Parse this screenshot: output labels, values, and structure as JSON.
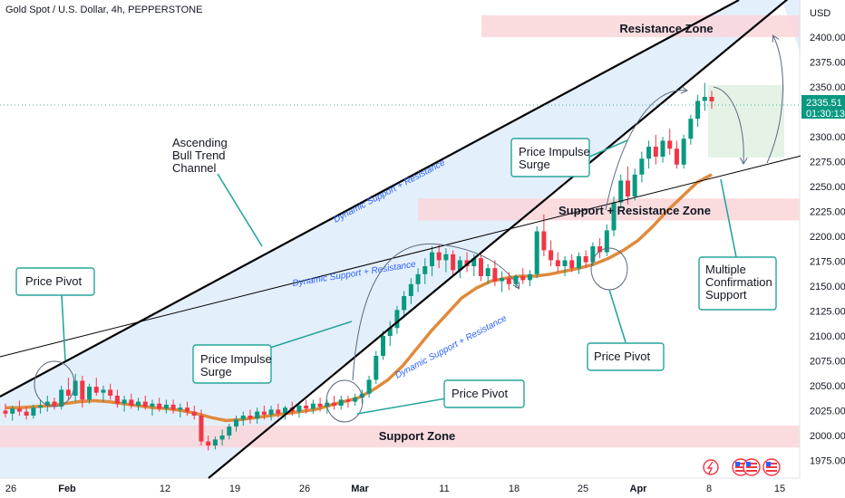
{
  "chart_data": {
    "type": "candlestick",
    "title": "Gold Spot / U.S. Dollar, 4h, PEPPERSTONE",
    "currency": "USD",
    "ylim": [
      1956,
      2447
    ],
    "y_ticks": [
      1975,
      2000,
      2025,
      2050,
      2075,
      2100,
      2125,
      2150,
      2175,
      2200,
      2225,
      2250,
      2275,
      2300,
      2325,
      2350,
      2375,
      2400
    ],
    "x_ticks": [
      "26",
      "Feb",
      "12",
      "19",
      "26",
      "Mar",
      "11",
      "18",
      "25",
      "Apr",
      "8",
      "15"
    ],
    "last_price": "2335.51",
    "countdown": "01:30:13",
    "colors": {
      "up": "#089981",
      "down": "#f23645",
      "ma": "#e08a3c",
      "channel_fill": "#dbe9fb",
      "zone_fill": "#f9d6d9",
      "accent": "#2962ff",
      "box_border": "#26a69a"
    },
    "zones": [
      {
        "name": "Resistance Zone",
        "from": 2400,
        "to": 2422
      },
      {
        "name": "Support + Resistance Zone",
        "from": 2216,
        "to": 2238
      },
      {
        "name": "Support Zone",
        "from": 1988,
        "to": 2010
      }
    ],
    "channel_labels": [
      "Dynamic Support + Resistance",
      "Dynamic Support + Resistance",
      "Dynamic Support + Resistance"
    ],
    "annotations": [
      "Price Pivot",
      "Ascending Bull Trend Channel",
      "Price Impulse Surge",
      "Price Pivot",
      "Price Impulse Surge",
      "Price Pivot",
      "Multiple Confirmation Support"
    ],
    "ohlc": [
      [
        2025,
        2032,
        2018,
        2022
      ],
      [
        2022,
        2030,
        2015,
        2027
      ],
      [
        2027,
        2035,
        2020,
        2024
      ],
      [
        2024,
        2029,
        2016,
        2020
      ],
      [
        2020,
        2031,
        2017,
        2028
      ],
      [
        2028,
        2036,
        2022,
        2030
      ],
      [
        2030,
        2040,
        2024,
        2034
      ],
      [
        2034,
        2038,
        2026,
        2029
      ],
      [
        2029,
        2050,
        2026,
        2046
      ],
      [
        2046,
        2058,
        2036,
        2040
      ],
      [
        2040,
        2062,
        2034,
        2055
      ],
      [
        2055,
        2060,
        2028,
        2036
      ],
      [
        2036,
        2052,
        2032,
        2049
      ],
      [
        2049,
        2058,
        2040,
        2043
      ],
      [
        2043,
        2050,
        2034,
        2046
      ],
      [
        2046,
        2052,
        2036,
        2040
      ],
      [
        2040,
        2046,
        2028,
        2032
      ],
      [
        2032,
        2040,
        2024,
        2036
      ],
      [
        2036,
        2042,
        2027,
        2030
      ],
      [
        2030,
        2038,
        2025,
        2034
      ],
      [
        2034,
        2040,
        2026,
        2029
      ],
      [
        2029,
        2036,
        2020,
        2032
      ],
      [
        2032,
        2038,
        2024,
        2027
      ],
      [
        2027,
        2036,
        2022,
        2031
      ],
      [
        2031,
        2036,
        2022,
        2026
      ],
      [
        2026,
        2032,
        2018,
        2028
      ],
      [
        2028,
        2034,
        2020,
        2024
      ],
      [
        2024,
        2030,
        2016,
        2020
      ],
      [
        2020,
        2026,
        1990,
        1994
      ],
      [
        1994,
        2000,
        1985,
        1990
      ],
      [
        1990,
        1999,
        1986,
        1996
      ],
      [
        1996,
        2006,
        1990,
        2000
      ],
      [
        2000,
        2012,
        1996,
        2009
      ],
      [
        2009,
        2020,
        2004,
        2016
      ],
      [
        2016,
        2024,
        2010,
        2020
      ],
      [
        2020,
        2026,
        2012,
        2017
      ],
      [
        2017,
        2028,
        2012,
        2024
      ],
      [
        2024,
        2030,
        2016,
        2021
      ],
      [
        2021,
        2030,
        2015,
        2026
      ],
      [
        2026,
        2032,
        2018,
        2022
      ],
      [
        2022,
        2030,
        2016,
        2028
      ],
      [
        2028,
        2034,
        2020,
        2024
      ],
      [
        2024,
        2032,
        2018,
        2030
      ],
      [
        2030,
        2036,
        2022,
        2027
      ],
      [
        2027,
        2036,
        2022,
        2032
      ],
      [
        2032,
        2038,
        2024,
        2029
      ],
      [
        2029,
        2036,
        2022,
        2033
      ],
      [
        2033,
        2040,
        2026,
        2030
      ],
      [
        2030,
        2040,
        2026,
        2036
      ],
      [
        2036,
        2040,
        2028,
        2034
      ],
      [
        2034,
        2042,
        2030,
        2038
      ],
      [
        2038,
        2046,
        2032,
        2042
      ],
      [
        2042,
        2060,
        2038,
        2056
      ],
      [
        2056,
        2085,
        2052,
        2080
      ],
      [
        2080,
        2105,
        2076,
        2100
      ],
      [
        2100,
        2115,
        2090,
        2108
      ],
      [
        2108,
        2130,
        2102,
        2126
      ],
      [
        2126,
        2145,
        2118,
        2140
      ],
      [
        2140,
        2158,
        2132,
        2152
      ],
      [
        2152,
        2168,
        2144,
        2162
      ],
      [
        2162,
        2178,
        2152,
        2170
      ],
      [
        2170,
        2190,
        2160,
        2184
      ],
      [
        2184,
        2192,
        2168,
        2176
      ],
      [
        2176,
        2188,
        2164,
        2182
      ],
      [
        2182,
        2186,
        2160,
        2166
      ],
      [
        2166,
        2180,
        2158,
        2176
      ],
      [
        2176,
        2184,
        2164,
        2170
      ],
      [
        2170,
        2182,
        2160,
        2178
      ],
      [
        2178,
        2182,
        2155,
        2160
      ],
      [
        2160,
        2172,
        2152,
        2168
      ],
      [
        2168,
        2176,
        2150,
        2155
      ],
      [
        2155,
        2165,
        2144,
        2158
      ],
      [
        2158,
        2164,
        2146,
        2152
      ],
      [
        2152,
        2162,
        2148,
        2160
      ],
      [
        2160,
        2168,
        2152,
        2156
      ],
      [
        2156,
        2166,
        2150,
        2162
      ],
      [
        2162,
        2210,
        2158,
        2205
      ],
      [
        2205,
        2222,
        2180,
        2186
      ],
      [
        2186,
        2196,
        2170,
        2176
      ],
      [
        2176,
        2184,
        2164,
        2170
      ],
      [
        2170,
        2180,
        2160,
        2176
      ],
      [
        2176,
        2182,
        2164,
        2168
      ],
      [
        2168,
        2184,
        2162,
        2180
      ],
      [
        2180,
        2186,
        2168,
        2174
      ],
      [
        2174,
        2194,
        2170,
        2190
      ],
      [
        2190,
        2198,
        2178,
        2184
      ],
      [
        2184,
        2212,
        2180,
        2206
      ],
      [
        2206,
        2240,
        2200,
        2234
      ],
      [
        2234,
        2262,
        2228,
        2256
      ],
      [
        2256,
        2270,
        2232,
        2240
      ],
      [
        2240,
        2268,
        2236,
        2262
      ],
      [
        2262,
        2285,
        2254,
        2278
      ],
      [
        2278,
        2296,
        2268,
        2290
      ],
      [
        2290,
        2302,
        2272,
        2280
      ],
      [
        2280,
        2300,
        2274,
        2296
      ],
      [
        2296,
        2308,
        2282,
        2288
      ],
      [
        2288,
        2296,
        2268,
        2272
      ],
      [
        2272,
        2302,
        2268,
        2298
      ],
      [
        2298,
        2322,
        2292,
        2318
      ],
      [
        2318,
        2342,
        2310,
        2336
      ],
      [
        2336,
        2354,
        2326,
        2340
      ],
      [
        2340,
        2346,
        2328,
        2335.51
      ]
    ],
    "ma": [
      2028,
      2028,
      2029,
      2030,
      2032,
      2034,
      2035,
      2034,
      2032,
      2030,
      2028,
      2027,
      2025,
      2022,
      2018,
      2015,
      2016,
      2018,
      2020,
      2022,
      2024,
      2026,
      2030,
      2034,
      2038,
      2046,
      2056,
      2070,
      2088,
      2106,
      2122,
      2138,
      2148,
      2155,
      2158,
      2160,
      2160,
      2162,
      2165,
      2168,
      2172,
      2178,
      2186,
      2196,
      2210,
      2226,
      2240,
      2254,
      2262
    ]
  }
}
